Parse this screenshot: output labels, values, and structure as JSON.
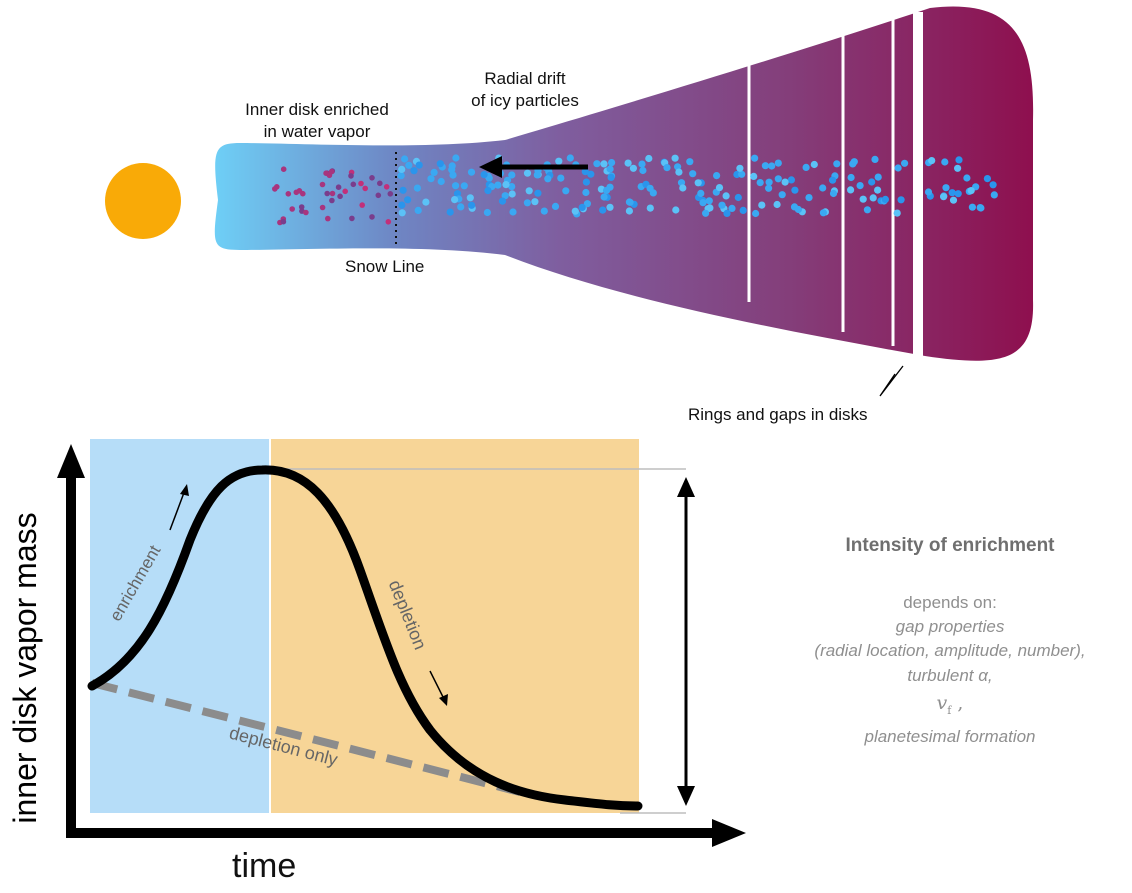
{
  "disk": {
    "inner_label": [
      "Inner disk enriched",
      "in water vapor"
    ],
    "drift_label": [
      "Radial drift",
      "of icy particles"
    ],
    "snow_line_label": "Snow Line",
    "rings_label": "Rings and gaps in disks"
  },
  "plot": {
    "y_axis_label": "inner disk vapor mass",
    "x_axis_label": "time",
    "enrichment_label": "enrichment",
    "depletion_label": "depletion",
    "depletion_only_label": "depletion only"
  },
  "sidebar": {
    "title": "Intensity of enrichment",
    "depends": "depends on:",
    "gap_properties": "gap properties",
    "gap_details": "(radial location, amplitude, number),",
    "turbulent": "turbulent α,",
    "vf_symbol": "v",
    "vf_subscript": "f",
    "vf_comma": " ,",
    "planetesimal": "planetesimal formation"
  },
  "colors": {
    "star": "#F9AA07",
    "enrichment_region": "#B6DDF8",
    "depletion_region": "#F7D597",
    "disk_inner": "#6ECFF6",
    "disk_outer": "#8E0F4E",
    "icy_particle": "#3AA8F2",
    "vapor_particle": "#B8307A"
  }
}
